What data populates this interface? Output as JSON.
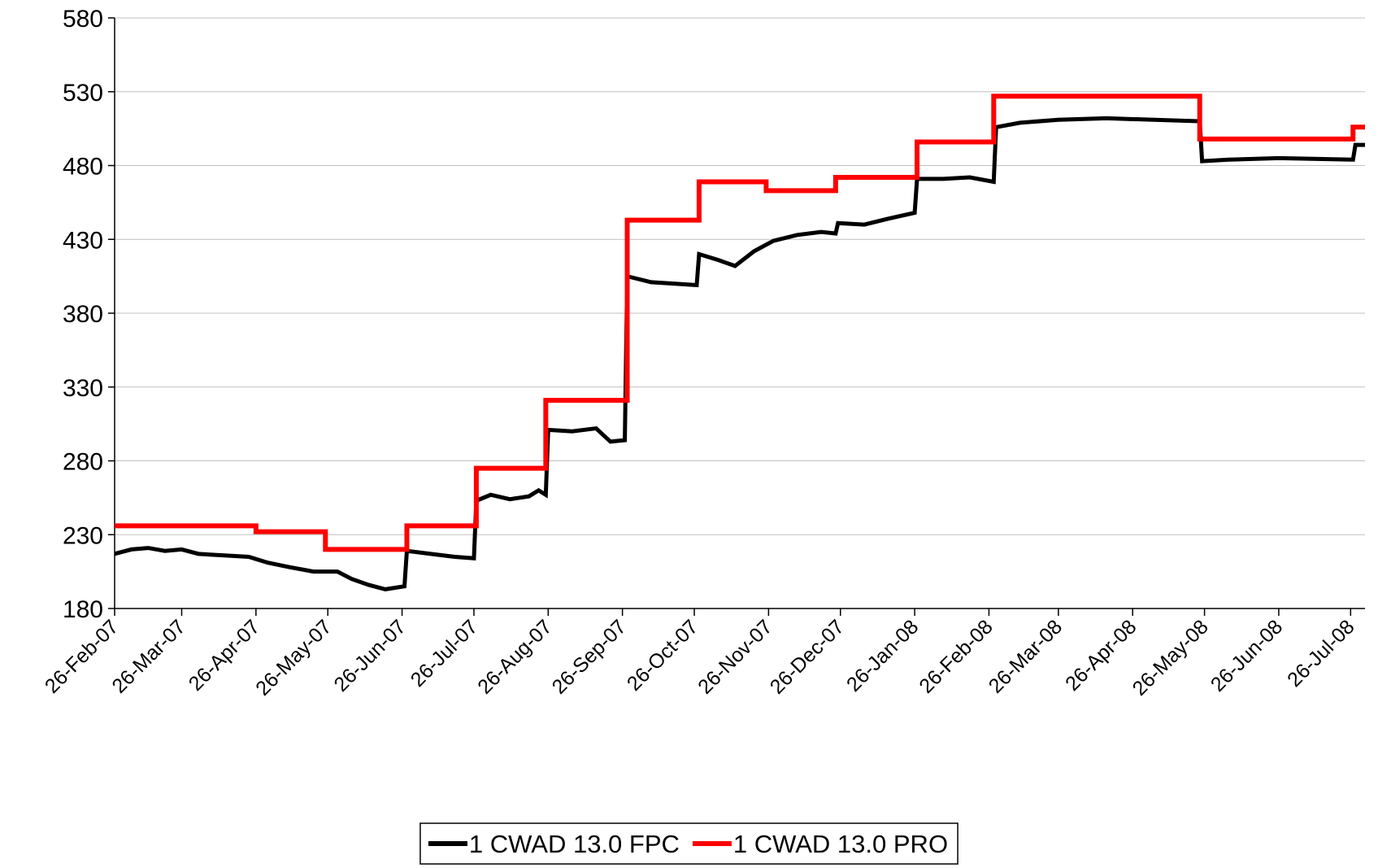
{
  "chart_data": {
    "type": "line",
    "xlim": [
      "2007-02-26",
      "2008-08-01"
    ],
    "xticks": [
      {
        "value": "2007-02-26",
        "label": "26-Feb-07"
      },
      {
        "value": "2007-03-26",
        "label": "26-Mar-07"
      },
      {
        "value": "2007-04-26",
        "label": "26-Apr-07"
      },
      {
        "value": "2007-05-26",
        "label": "26-May-07"
      },
      {
        "value": "2007-06-26",
        "label": "26-Jun-07"
      },
      {
        "value": "2007-07-26",
        "label": "26-Jul-07"
      },
      {
        "value": "2007-08-26",
        "label": "26-Aug-07"
      },
      {
        "value": "2007-09-26",
        "label": "26-Sep-07"
      },
      {
        "value": "2007-10-26",
        "label": "26-Oct-07"
      },
      {
        "value": "2007-11-26",
        "label": "26-Nov-07"
      },
      {
        "value": "2007-12-26",
        "label": "26-Dec-07"
      },
      {
        "value": "2008-01-26",
        "label": "26-Jan-08"
      },
      {
        "value": "2008-02-26",
        "label": "26-Feb-08"
      },
      {
        "value": "2008-03-26",
        "label": "26-Mar-08"
      },
      {
        "value": "2008-04-26",
        "label": "26-Apr-08"
      },
      {
        "value": "2008-05-26",
        "label": "26-May-08"
      },
      {
        "value": "2008-06-26",
        "label": "26-Jun-08"
      },
      {
        "value": "2008-07-26",
        "label": "26-Jul-08"
      }
    ],
    "ylim": [
      180,
      580
    ],
    "yticks": [
      180,
      230,
      280,
      330,
      380,
      430,
      480,
      530,
      580
    ],
    "grid": true,
    "legend": "bottom",
    "series": [
      {
        "name": "1 CWAD 13.0 FPC",
        "color": "#000000",
        "x": [
          "2007-02-26",
          "2007-03-05",
          "2007-03-12",
          "2007-03-19",
          "2007-03-26",
          "2007-04-02",
          "2007-04-12",
          "2007-04-23",
          "2007-05-01",
          "2007-05-10",
          "2007-05-20",
          "2007-05-30",
          "2007-06-05",
          "2007-06-12",
          "2007-06-19",
          "2007-06-27",
          "2007-06-28",
          "2007-07-08",
          "2007-07-18",
          "2007-07-26",
          "2007-07-27",
          "2007-08-02",
          "2007-08-10",
          "2007-08-18",
          "2007-08-22",
          "2007-08-25",
          "2007-08-26",
          "2007-09-05",
          "2007-09-15",
          "2007-09-21",
          "2007-09-27",
          "2007-09-28",
          "2007-10-08",
          "2007-10-18",
          "2007-10-27",
          "2007-10-28",
          "2007-11-05",
          "2007-11-12",
          "2007-11-20",
          "2007-11-28",
          "2007-12-08",
          "2007-12-18",
          "2007-12-24",
          "2007-12-25",
          "2008-01-05",
          "2008-01-15",
          "2008-01-26",
          "2008-01-27",
          "2008-02-07",
          "2008-02-18",
          "2008-02-28",
          "2008-02-29",
          "2008-03-10",
          "2008-03-26",
          "2008-04-15",
          "2008-05-05",
          "2008-05-24",
          "2008-05-25",
          "2008-06-05",
          "2008-06-26",
          "2008-07-27",
          "2008-07-28",
          "2008-08-01"
        ],
        "values": [
          217,
          220,
          221,
          219,
          220,
          217,
          216,
          215,
          211,
          208,
          205,
          205,
          200,
          196,
          193,
          195,
          219,
          217,
          215,
          214,
          253,
          257,
          254,
          256,
          260,
          257,
          301,
          300,
          302,
          293,
          294,
          405,
          401,
          400,
          399,
          420,
          416,
          412,
          422,
          429,
          433,
          435,
          434,
          441,
          440,
          444,
          448,
          471,
          471,
          472,
          469,
          506,
          509,
          511,
          512,
          511,
          510,
          483,
          484,
          485,
          484,
          494,
          494
        ]
      },
      {
        "name": "1 CWAD 13.0 PRO",
        "color": "#ff0000",
        "x": [
          "2007-02-26",
          "2007-04-26",
          "2007-04-26",
          "2007-05-25",
          "2007-05-25",
          "2007-06-28",
          "2007-06-28",
          "2007-07-27",
          "2007-07-27",
          "2007-08-25",
          "2007-08-25",
          "2007-09-28",
          "2007-09-28",
          "2007-10-28",
          "2007-10-28",
          "2007-11-25",
          "2007-11-25",
          "2007-12-24",
          "2007-12-24",
          "2008-01-27",
          "2008-01-27",
          "2008-02-28",
          "2008-02-28",
          "2008-05-24",
          "2008-05-24",
          "2008-07-27",
          "2008-07-27",
          "2008-08-01"
        ],
        "values": [
          236,
          236,
          232,
          232,
          220,
          220,
          236,
          236,
          275,
          275,
          321,
          321,
          443,
          443,
          469,
          469,
          463,
          463,
          472,
          472,
          496,
          496,
          527,
          527,
          498,
          498,
          506,
          506
        ]
      }
    ]
  }
}
